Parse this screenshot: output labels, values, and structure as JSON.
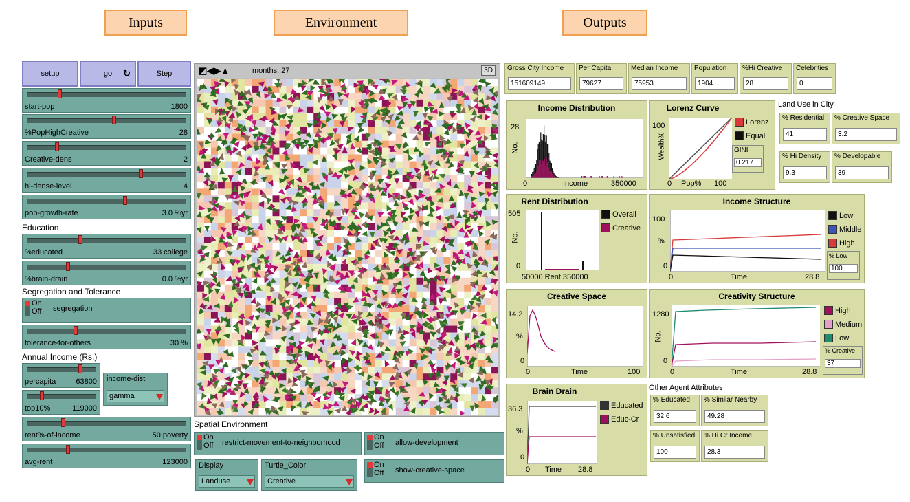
{
  "headers": {
    "inputs": "Inputs",
    "environment": "Environment",
    "outputs": "Outputs"
  },
  "buttons": {
    "setup": "setup",
    "go": "go",
    "step": "Step"
  },
  "sliders": [
    {
      "label": "start-pop",
      "value": "1800",
      "level": 0.2
    },
    {
      "label": "%PopHighCreative",
      "value": "28",
      "level": 0.55
    },
    {
      "label": "Creative-dens",
      "value": "2",
      "level": 0.18
    },
    {
      "label": "hi-dense-level",
      "value": "4",
      "level": 0.72
    },
    {
      "label": "pop-growth-rate",
      "value": "3.0 %yr",
      "level": 0.62
    },
    {
      "label": "%educated",
      "value": "33 college",
      "level": 0.33
    },
    {
      "label": "%brain-drain",
      "value": "0.0 %yr",
      "level": 0.25
    },
    {
      "label": "tolerance-for-others",
      "value": "30 %",
      "level": 0.3
    },
    {
      "label": "percapita",
      "value": "63800",
      "level": 0.8
    },
    {
      "label": "top10%",
      "value": "119000",
      "level": 0.2
    },
    {
      "label": "rent%-of-income",
      "value": "50 poverty",
      "level": 0.22
    },
    {
      "label": "avg-rent",
      "value": "123000",
      "level": 0.25
    }
  ],
  "sections": {
    "education": "Education",
    "segregation": "Segregation and Tolerance",
    "income": "Annual Income (Rs.)",
    "spatial": "Spatial Environment"
  },
  "switches": {
    "on": "On",
    "off": "Off",
    "segregation": "segregation",
    "restrict": "restrict-movement-to-neighborhood",
    "allow_dev": "allow-development",
    "show_creative": "show-creative-space"
  },
  "choosers": {
    "income_dist": {
      "label": "income-dist",
      "value": "gamma"
    },
    "display": {
      "label": "Display",
      "value": "Landuse"
    },
    "turtle_color": {
      "label": "Turtle_Color",
      "value": "Creative"
    }
  },
  "view": {
    "months": "months: 27",
    "btn3d": "3D"
  },
  "top_monitors": [
    {
      "label": "Gross City Income",
      "value": "151609149"
    },
    {
      "label": "Per Capita",
      "value": "79627"
    },
    {
      "label": "Median Income",
      "value": "75953"
    },
    {
      "label": "Population",
      "value": "1904"
    },
    {
      "label": "%Hi Creative",
      "value": "28"
    },
    {
      "label": "Celebrities",
      "value": "0"
    }
  ],
  "land_use": {
    "title": "Land Use in City",
    "residential": {
      "label": "% Residential",
      "value": "41"
    },
    "creative_space": {
      "label": "% Creative Space",
      "value": "3.2"
    },
    "hi_density": {
      "label": "% Hi Density",
      "value": "9.3"
    },
    "developable": {
      "label": "% Developable",
      "value": "39"
    }
  },
  "other_attrs": {
    "title": "Other Agent Attributes",
    "educated": {
      "label": "% Educated",
      "value": "32.6"
    },
    "similar": {
      "label": "% Similar Nearby",
      "value": "49.28"
    },
    "unsatisfied": {
      "label": "% Unsatisfied",
      "value": "100"
    },
    "hi_cr_income": {
      "label": "% Hi Cr Income",
      "value": "28.3"
    }
  },
  "plots": {
    "income_dist": {
      "title": "Income Distribution",
      "ymax": "28",
      "ylabel": "No.",
      "xmin": "0",
      "xlabel": "Income",
      "xmax": "350000"
    },
    "lorenz": {
      "title": "Lorenz Curve",
      "ymax": "100",
      "ylabel": "Wealth%",
      "xmin": "0",
      "xlabel": "Pop%",
      "xmax": "100",
      "legend": [
        "Lorenz",
        "Equal"
      ],
      "gini_label": "GINI",
      "gini_value": "0.217"
    },
    "rent_dist": {
      "title": "Rent Distribution",
      "ymax": "505",
      "ylabel": "No.",
      "ymin": "0",
      "xlabel": "50000 Rent 350000",
      "legend": [
        "Overall",
        "Creative"
      ]
    },
    "income_struct": {
      "title": "Income Structure",
      "ymax": "100",
      "ylabel": "%",
      "ymin": "0",
      "xmin": "0",
      "xlabel": "Time",
      "xmax": "28.8",
      "legend": [
        "Low",
        "Middle",
        "High"
      ],
      "mon_label": "% Low",
      "mon_value": "100"
    },
    "creative_space": {
      "title": "Creative Space",
      "ymax": "14.2",
      "ylabel": "%",
      "ymin": "0",
      "xmin": "0",
      "xlabel": "Time",
      "xmax": "100"
    },
    "creativity_struct": {
      "title": "Creativity Structure",
      "ymax": "1280",
      "ylabel": "No.",
      "ymin": "0",
      "xmin": "0",
      "xlabel": "Time",
      "xmax": "28.8",
      "legend": [
        "High",
        "Medium",
        "Low"
      ],
      "mon_label": "% Creative",
      "mon_value": "37"
    },
    "brain_drain": {
      "title": "Brain Drain",
      "ymax": "36.3",
      "ylabel": "%",
      "ymin": "0",
      "xmin": "0",
      "xlabel": "Time",
      "xmax": "28.8",
      "legend": [
        "Educated",
        "Educ-Cr"
      ]
    }
  },
  "colors": {
    "low": "#111111",
    "middle": "#3c55b8",
    "high": "#d83a3a",
    "creative": "#a0105f",
    "medium": "#e3a0c8",
    "lowteal": "#1f8a6e",
    "lorenz": "#d83a3a",
    "equal": "#111111"
  }
}
